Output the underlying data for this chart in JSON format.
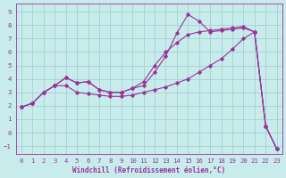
{
  "xlabel": "Windchill (Refroidissement éolien,°C)",
  "bg_color": "#c8ecec",
  "grid_color": "#aad4d4",
  "line_color": "#993399",
  "xlim": [
    -0.5,
    23.5
  ],
  "ylim": [
    -1.6,
    9.6
  ],
  "xticks": [
    0,
    1,
    2,
    3,
    4,
    5,
    6,
    7,
    8,
    9,
    10,
    11,
    12,
    13,
    14,
    15,
    16,
    17,
    18,
    19,
    20,
    21,
    22,
    23
  ],
  "yticks": [
    -1,
    0,
    1,
    2,
    3,
    4,
    5,
    6,
    7,
    8,
    9
  ],
  "line1_x": [
    0,
    1,
    2,
    3,
    4,
    5,
    6,
    7,
    8,
    9,
    10,
    11,
    12,
    13,
    14,
    15,
    16,
    17,
    18,
    19,
    20,
    21,
    22,
    23
  ],
  "line1_y": [
    1.9,
    2.2,
    3.0,
    3.5,
    4.1,
    3.7,
    3.8,
    3.2,
    3.0,
    3.0,
    3.3,
    3.5,
    4.5,
    5.7,
    7.4,
    8.8,
    8.3,
    7.5,
    7.6,
    7.7,
    7.8,
    7.5,
    0.5,
    -1.2
  ],
  "line2_x": [
    0,
    1,
    2,
    3,
    4,
    5,
    6,
    7,
    8,
    9,
    10,
    11,
    12,
    13,
    14,
    15,
    16,
    17,
    18,
    19,
    20,
    21,
    22,
    23
  ],
  "line2_y": [
    1.9,
    2.2,
    3.0,
    3.5,
    4.1,
    3.7,
    3.8,
    3.2,
    3.0,
    3.0,
    3.3,
    3.8,
    5.0,
    6.0,
    6.7,
    7.3,
    7.5,
    7.6,
    7.7,
    7.8,
    7.9,
    7.5,
    0.5,
    -1.2
  ],
  "line3_x": [
    0,
    1,
    2,
    3,
    4,
    5,
    6,
    7,
    8,
    9,
    10,
    11,
    12,
    13,
    14,
    15,
    16,
    17,
    18,
    19,
    20,
    21,
    22,
    23
  ],
  "line3_y": [
    1.9,
    2.2,
    3.0,
    3.5,
    3.5,
    3.0,
    2.9,
    2.8,
    2.7,
    2.7,
    2.8,
    3.0,
    3.2,
    3.4,
    3.7,
    4.0,
    4.5,
    5.0,
    5.5,
    6.2,
    7.0,
    7.5,
    0.5,
    -1.2
  ]
}
